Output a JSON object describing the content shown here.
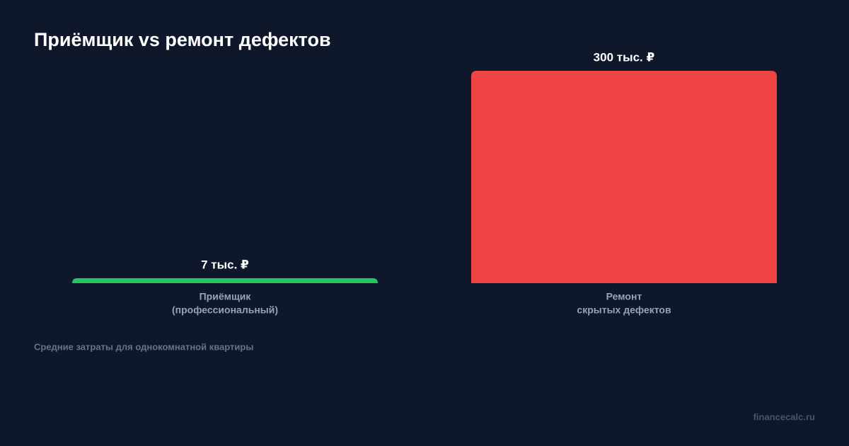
{
  "chart_data": {
    "type": "bar",
    "title": "Приёмщик vs ремонт дефектов",
    "categories": [
      [
        "Приёмщик",
        "(профессиональный)"
      ],
      [
        "Ремонт",
        "скрытых дефектов"
      ]
    ],
    "values": [
      7,
      300
    ],
    "value_labels": [
      "7 тыс. ₽",
      "300 тыс. ₽"
    ],
    "colors": [
      "#22c55e",
      "#ef4444"
    ],
    "ylim": [
      0,
      300
    ],
    "note": "Средние затраты для однокомнатной квартиры",
    "source": "financecalc.ru"
  }
}
